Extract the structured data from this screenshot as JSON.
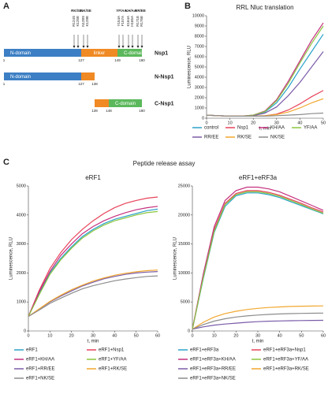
{
  "panels": {
    "a": "A",
    "b": "B",
    "c": "C",
    "c_title": "Peptide release assay"
  },
  "diagram": {
    "mutations": [
      {
        "group": "RK/SE",
        "residues": [
          "R124S",
          "K125E"
        ]
      },
      {
        "group": "NK/SE",
        "residues": [
          "N128S",
          "K129E"
        ]
      },
      {
        "group": "YF/AA",
        "residues": [
          "Y154A",
          "F157A"
        ]
      },
      {
        "group": "KH/AA",
        "residues": [
          "K164A",
          "H165A"
        ]
      },
      {
        "group": "RR/EE",
        "residues": [
          "R171E",
          "R175E"
        ]
      }
    ],
    "rows": [
      {
        "name": "Nsp1",
        "numbers": [
          1,
          127,
          149,
          180
        ],
        "labels": [
          "N-domain",
          "linker",
          "C-domain"
        ]
      },
      {
        "name": "N-Nsp1",
        "numbers": [
          1,
          127,
          138
        ],
        "labels": [
          "N-domain"
        ]
      },
      {
        "name": "C-Nsp1",
        "numbers": [
          139,
          148,
          180
        ],
        "labels": [
          "C-domain"
        ]
      }
    ]
  },
  "chart_data": [
    {
      "type": "line",
      "title": "RRL Nluc translation",
      "xlabel": "t, min",
      "ylabel": "Luminescence, RLU",
      "xlim": [
        0,
        50
      ],
      "xticks": [
        0,
        10,
        20,
        30,
        40,
        50
      ],
      "ylim": [
        0,
        10000
      ],
      "yticks": [
        0,
        1000,
        2000,
        3000,
        4000,
        5000,
        6000,
        7000,
        8000,
        9000,
        10000
      ],
      "x": [
        0,
        5,
        10,
        15,
        20,
        25,
        30,
        35,
        40,
        45,
        50
      ],
      "legend_columns": 4,
      "series": [
        {
          "name": "control",
          "color": "#2aa3c9",
          "values": [
            300,
            250,
            200,
            200,
            250,
            600,
            1500,
            3000,
            4800,
            6500,
            8200
          ]
        },
        {
          "name": "Nsp1",
          "color": "#e8435a",
          "values": [
            300,
            250,
            200,
            200,
            200,
            250,
            400,
            800,
            1400,
            2100,
            2700
          ]
        },
        {
          "name": "KH/AA",
          "color": "#c5307f",
          "values": [
            300,
            250,
            200,
            200,
            300,
            700,
            1800,
            3600,
            5600,
            7600,
            9300
          ]
        },
        {
          "name": "YF/AA",
          "color": "#8cc63f",
          "values": [
            300,
            250,
            200,
            200,
            300,
            650,
            1700,
            3400,
            5400,
            7300,
            9000
          ]
        },
        {
          "name": "RR/EE",
          "color": "#7a5ca8",
          "values": [
            300,
            250,
            200,
            200,
            250,
            500,
            1100,
            2200,
            3500,
            5000,
            6500
          ]
        },
        {
          "name": "RK/SE",
          "color": "#f2a72e",
          "values": [
            300,
            250,
            200,
            200,
            200,
            250,
            350,
            600,
            1000,
            1500,
            1900
          ]
        },
        {
          "name": "NK/SE",
          "color": "#8c8c8c",
          "values": [
            300,
            250,
            200,
            200,
            200,
            200,
            250,
            300,
            350,
            450,
            500
          ]
        }
      ]
    },
    {
      "type": "line",
      "title": "eRF1",
      "xlabel": "t, min",
      "ylabel": "Luminescence, RLU",
      "xlim": [
        0,
        60
      ],
      "xticks": [
        0,
        10,
        20,
        30,
        40,
        50,
        60
      ],
      "ylim": [
        0,
        5000
      ],
      "yticks": [
        0,
        1000,
        2000,
        3000,
        4000,
        5000
      ],
      "x": [
        0,
        5,
        10,
        15,
        20,
        25,
        30,
        35,
        40,
        45,
        50,
        55,
        60
      ],
      "legend_columns": 2,
      "series": [
        {
          "name": "eRF1",
          "color": "#2aa3c9",
          "values": [
            500,
            1300,
            2000,
            2500,
            2900,
            3250,
            3500,
            3700,
            3850,
            3950,
            4050,
            4150,
            4200
          ]
        },
        {
          "name": "eRF1+Nsp1",
          "color": "#e8435a",
          "values": [
            500,
            1400,
            2150,
            2700,
            3150,
            3500,
            3800,
            4050,
            4250,
            4400,
            4500,
            4580,
            4620
          ]
        },
        {
          "name": "eRF1+KH/AA",
          "color": "#c5307f",
          "values": [
            500,
            1350,
            2050,
            2600,
            3000,
            3350,
            3600,
            3800,
            3950,
            4080,
            4180,
            4250,
            4300
          ]
        },
        {
          "name": "eRF1+YF/AA",
          "color": "#8cc63f",
          "values": [
            500,
            1250,
            1950,
            2450,
            2850,
            3200,
            3450,
            3650,
            3800,
            3900,
            4000,
            4080,
            4120
          ]
        },
        {
          "name": "eRF1+RR/EE",
          "color": "#7a5ca8",
          "values": [
            500,
            750,
            1000,
            1200,
            1380,
            1550,
            1680,
            1800,
            1880,
            1950,
            2000,
            2030,
            2050
          ]
        },
        {
          "name": "eRF1+RK/SE",
          "color": "#f2a72e",
          "values": [
            500,
            760,
            1020,
            1230,
            1420,
            1580,
            1720,
            1830,
            1920,
            1990,
            2040,
            2080,
            2100
          ]
        },
        {
          "name": "eRF1+NK/SE",
          "color": "#8c8c8c",
          "values": [
            500,
            720,
            950,
            1130,
            1300,
            1450,
            1560,
            1650,
            1730,
            1790,
            1840,
            1880,
            1900
          ]
        }
      ]
    },
    {
      "type": "line",
      "title": "eRF1+eRF3a",
      "xlabel": "t, min",
      "ylabel": "Luminescence, RLU",
      "xlim": [
        0,
        60
      ],
      "xticks": [
        0,
        10,
        20,
        30,
        40,
        50,
        60
      ],
      "ylim": [
        0,
        25000
      ],
      "yticks": [
        0,
        5000,
        10000,
        15000,
        20000,
        25000
      ],
      "x": [
        0,
        5,
        10,
        15,
        20,
        25,
        30,
        35,
        40,
        45,
        50,
        55,
        60
      ],
      "legend_columns": 2,
      "series": [
        {
          "name": "eRF1+eRF3a",
          "color": "#2aa3c9",
          "values": [
            300,
            9000,
            17000,
            21500,
            23300,
            23800,
            23800,
            23500,
            23000,
            22300,
            21600,
            20900,
            20200
          ]
        },
        {
          "name": "eRF1+eRF3a+Nsp1",
          "color": "#e8435a",
          "values": [
            300,
            9500,
            17500,
            22000,
            23700,
            24200,
            24200,
            23900,
            23400,
            22700,
            22000,
            21200,
            20500
          ]
        },
        {
          "name": "eRF1+eRF3a+KH/AA",
          "color": "#c5307f",
          "values": [
            300,
            9800,
            18000,
            22500,
            24200,
            24800,
            24800,
            24500,
            24000,
            23200,
            22400,
            21600,
            20800
          ]
        },
        {
          "name": "eRF1+eRF3a+YF/AA",
          "color": "#8cc63f",
          "values": [
            300,
            9200,
            17200,
            21800,
            23500,
            24000,
            24000,
            23700,
            23200,
            22500,
            21800,
            21000,
            20300
          ]
        },
        {
          "name": "eRF1+eRF3a+RR/EE",
          "color": "#7a5ca8",
          "values": [
            300,
            700,
            1000,
            1200,
            1350,
            1500,
            1600,
            1680,
            1730,
            1770,
            1800,
            1820,
            1840
          ]
        },
        {
          "name": "eRF1+eRF3a+RK/SE",
          "color": "#f2a72e",
          "values": [
            300,
            1500,
            2400,
            3000,
            3400,
            3700,
            3900,
            4050,
            4150,
            4220,
            4270,
            4300,
            4320
          ]
        },
        {
          "name": "eRF1+eRF3a+NK/SE",
          "color": "#8c8c8c",
          "values": [
            300,
            1100,
            1700,
            2100,
            2400,
            2600,
            2750,
            2850,
            2930,
            2990,
            3030,
            3060,
            3080
          ]
        }
      ]
    }
  ]
}
